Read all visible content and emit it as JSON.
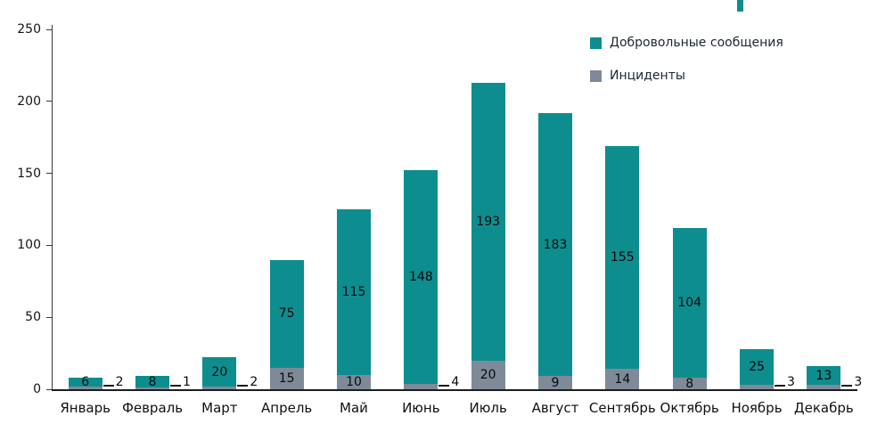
{
  "chart_data": {
    "type": "bar",
    "stacked": true,
    "title": "",
    "xlabel": "",
    "ylabel": "",
    "categories": [
      "Январь",
      "Февраль",
      "Март",
      "Апрель",
      "Май",
      "Июнь",
      "Июль",
      "Август",
      "Сентябрь",
      "Октябрь",
      "Ноябрь",
      "Декабрь"
    ],
    "series": [
      {
        "name": "Инциденты",
        "color": "#7e8a97",
        "values": [
          2,
          1,
          2,
          15,
          10,
          4,
          20,
          9,
          14,
          8,
          3,
          3
        ]
      },
      {
        "name": "Добровольные сообщения",
        "color": "#0e8d8f",
        "values": [
          6,
          8,
          20,
          75,
          115,
          148,
          193,
          183,
          155,
          104,
          25,
          13
        ]
      }
    ],
    "legend": [
      {
        "label": "Добровольные сообщения",
        "color": "#0e8d8f"
      },
      {
        "label": "Инциденты",
        "color": "#7e8a97"
      }
    ],
    "legend_position": "top-right",
    "grid": false,
    "ylim": [
      0,
      250
    ],
    "yticks": [
      0,
      50,
      100,
      150,
      200,
      250
    ],
    "callout_threshold": 8
  }
}
